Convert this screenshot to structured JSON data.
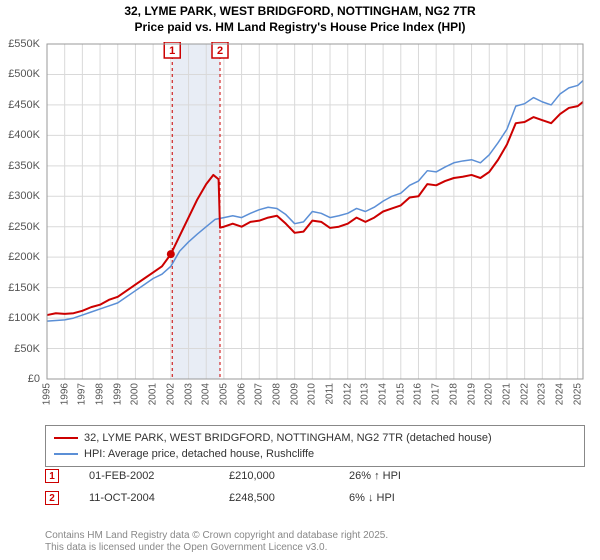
{
  "title_line1": "32, LYME PARK, WEST BRIDGFORD, NOTTINGHAM, NG2 7TR",
  "title_line2": "Price paid vs. HM Land Registry's House Price Index (HPI)",
  "chart": {
    "type": "line",
    "x_years": [
      1995,
      1996,
      1997,
      1998,
      1999,
      2000,
      2001,
      2002,
      2003,
      2004,
      2005,
      2006,
      2007,
      2008,
      2009,
      2010,
      2011,
      2012,
      2013,
      2014,
      2015,
      2016,
      2017,
      2018,
      2019,
      2020,
      2021,
      2022,
      2023,
      2024,
      2025
    ],
    "ylim": [
      0,
      550000
    ],
    "ytick_step": 50000,
    "ytick_labels": [
      "£0",
      "£50K",
      "£100K",
      "£150K",
      "£200K",
      "£250K",
      "£300K",
      "£350K",
      "£400K",
      "£450K",
      "£500K",
      "£550K"
    ],
    "grid_color": "#d9d9d9",
    "background_color": "#ffffff",
    "band_color": "#e8edf5",
    "marker_dash_color": "#cc0000",
    "series": {
      "property": {
        "label": "32, LYME PARK, WEST BRIDGFORD, NOTTINGHAM, NG2 7TR (detached house)",
        "color": "#cc0000",
        "width": 2,
        "xy": [
          [
            1995.0,
            105000
          ],
          [
            1995.5,
            108000
          ],
          [
            1996.0,
            107000
          ],
          [
            1996.5,
            108000
          ],
          [
            1997.0,
            112000
          ],
          [
            1997.5,
            118000
          ],
          [
            1998.0,
            122000
          ],
          [
            1998.5,
            130000
          ],
          [
            1999.0,
            135000
          ],
          [
            1999.5,
            145000
          ],
          [
            2000.0,
            155000
          ],
          [
            2000.5,
            165000
          ],
          [
            2001.0,
            175000
          ],
          [
            2001.5,
            185000
          ],
          [
            2002.0,
            205000
          ],
          [
            2002.5,
            235000
          ],
          [
            2003.0,
            265000
          ],
          [
            2003.5,
            295000
          ],
          [
            2004.0,
            320000
          ],
          [
            2004.4,
            335000
          ],
          [
            2004.7,
            328000
          ],
          [
            2004.78,
            248500
          ],
          [
            2005.0,
            250000
          ],
          [
            2005.5,
            255000
          ],
          [
            2006.0,
            250000
          ],
          [
            2006.5,
            258000
          ],
          [
            2007.0,
            260000
          ],
          [
            2007.5,
            265000
          ],
          [
            2008.0,
            268000
          ],
          [
            2008.5,
            255000
          ],
          [
            2009.0,
            240000
          ],
          [
            2009.5,
            242000
          ],
          [
            2010.0,
            260000
          ],
          [
            2010.5,
            258000
          ],
          [
            2011.0,
            248000
          ],
          [
            2011.5,
            250000
          ],
          [
            2012.0,
            255000
          ],
          [
            2012.5,
            265000
          ],
          [
            2013.0,
            258000
          ],
          [
            2013.5,
            265000
          ],
          [
            2014.0,
            275000
          ],
          [
            2014.5,
            280000
          ],
          [
            2015.0,
            285000
          ],
          [
            2015.5,
            298000
          ],
          [
            2016.0,
            300000
          ],
          [
            2016.5,
            320000
          ],
          [
            2017.0,
            318000
          ],
          [
            2017.5,
            325000
          ],
          [
            2018.0,
            330000
          ],
          [
            2018.5,
            332000
          ],
          [
            2019.0,
            335000
          ],
          [
            2019.5,
            330000
          ],
          [
            2020.0,
            340000
          ],
          [
            2020.5,
            360000
          ],
          [
            2021.0,
            385000
          ],
          [
            2021.5,
            420000
          ],
          [
            2022.0,
            422000
          ],
          [
            2022.5,
            430000
          ],
          [
            2023.0,
            425000
          ],
          [
            2023.5,
            420000
          ],
          [
            2024.0,
            435000
          ],
          [
            2024.5,
            445000
          ],
          [
            2025.0,
            448000
          ],
          [
            2025.3,
            455000
          ]
        ]
      },
      "hpi": {
        "label": "HPI: Average price, detached house, Rushcliffe",
        "color": "#5b8fd6",
        "width": 1.5,
        "xy": [
          [
            1995.0,
            95000
          ],
          [
            1995.5,
            96000
          ],
          [
            1996.0,
            97000
          ],
          [
            1996.5,
            100000
          ],
          [
            1997.0,
            105000
          ],
          [
            1997.5,
            110000
          ],
          [
            1998.0,
            115000
          ],
          [
            1998.5,
            120000
          ],
          [
            1999.0,
            125000
          ],
          [
            1999.5,
            135000
          ],
          [
            2000.0,
            145000
          ],
          [
            2000.5,
            155000
          ],
          [
            2001.0,
            165000
          ],
          [
            2001.5,
            172000
          ],
          [
            2002.0,
            185000
          ],
          [
            2002.5,
            210000
          ],
          [
            2003.0,
            225000
          ],
          [
            2003.5,
            238000
          ],
          [
            2004.0,
            250000
          ],
          [
            2004.5,
            262000
          ],
          [
            2005.0,
            265000
          ],
          [
            2005.5,
            268000
          ],
          [
            2006.0,
            265000
          ],
          [
            2006.5,
            272000
          ],
          [
            2007.0,
            278000
          ],
          [
            2007.5,
            282000
          ],
          [
            2008.0,
            280000
          ],
          [
            2008.5,
            270000
          ],
          [
            2009.0,
            255000
          ],
          [
            2009.5,
            258000
          ],
          [
            2010.0,
            275000
          ],
          [
            2010.5,
            272000
          ],
          [
            2011.0,
            265000
          ],
          [
            2011.5,
            268000
          ],
          [
            2012.0,
            272000
          ],
          [
            2012.5,
            280000
          ],
          [
            2013.0,
            275000
          ],
          [
            2013.5,
            282000
          ],
          [
            2014.0,
            292000
          ],
          [
            2014.5,
            300000
          ],
          [
            2015.0,
            305000
          ],
          [
            2015.5,
            318000
          ],
          [
            2016.0,
            325000
          ],
          [
            2016.5,
            342000
          ],
          [
            2017.0,
            340000
          ],
          [
            2017.5,
            348000
          ],
          [
            2018.0,
            355000
          ],
          [
            2018.5,
            358000
          ],
          [
            2019.0,
            360000
          ],
          [
            2019.5,
            355000
          ],
          [
            2020.0,
            368000
          ],
          [
            2020.5,
            388000
          ],
          [
            2021.0,
            410000
          ],
          [
            2021.5,
            448000
          ],
          [
            2022.0,
            452000
          ],
          [
            2022.5,
            462000
          ],
          [
            2023.0,
            455000
          ],
          [
            2023.5,
            450000
          ],
          [
            2024.0,
            468000
          ],
          [
            2024.5,
            478000
          ],
          [
            2025.0,
            482000
          ],
          [
            2025.3,
            490000
          ]
        ]
      }
    },
    "sales_markers": [
      {
        "n": "1",
        "year": 2002.08
      },
      {
        "n": "2",
        "year": 2004.78
      }
    ]
  },
  "sales": [
    {
      "n": "1",
      "date": "01-FEB-2002",
      "price": "£210,000",
      "pct": "26% ↑ HPI"
    },
    {
      "n": "2",
      "date": "11-OCT-2004",
      "price": "£248,500",
      "pct": "6% ↓ HPI"
    }
  ],
  "footer_line1": "Contains HM Land Registry data © Crown copyright and database right 2025.",
  "footer_line2": "This data is licensed under the Open Government Licence v3.0."
}
